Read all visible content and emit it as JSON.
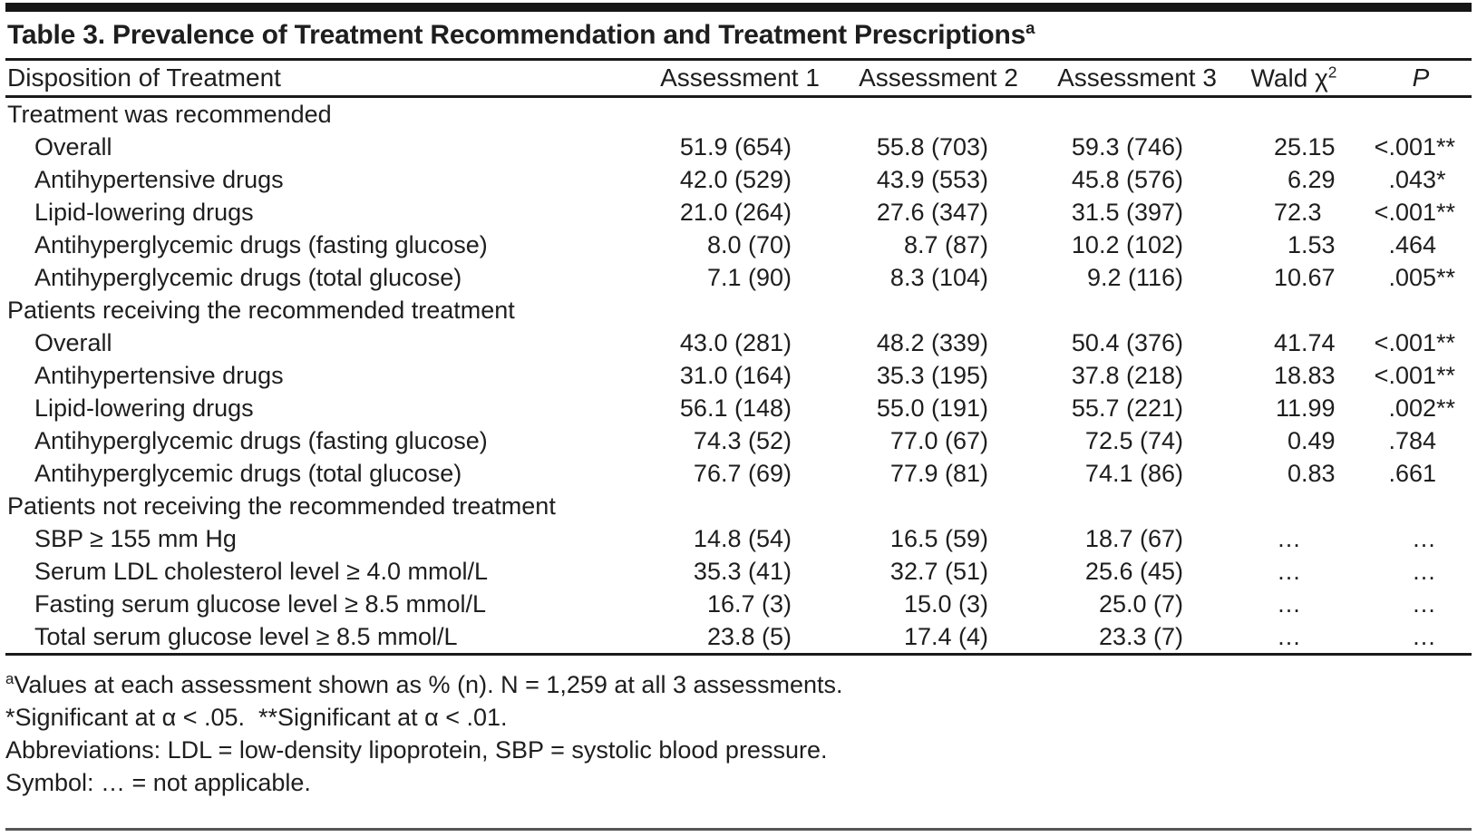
{
  "title": {
    "text": "Table 3. Prevalence of Treatment Recommendation and Treatment Prescriptions",
    "sup": "a"
  },
  "header": {
    "label": "Disposition of Treatment",
    "assessment1": "Assessment 1",
    "assessment2": "Assessment 2",
    "assessment3": "Assessment 3",
    "wald_base": "Wald χ",
    "wald_sup": "2",
    "p": "P"
  },
  "table": {
    "rows": [
      {
        "type": "section",
        "label": "Treatment was recommended"
      },
      {
        "type": "item",
        "label": "Overall",
        "a1": "51.9 (654)",
        "a2": "55.8 (703)",
        "a3": "59.3 (746)",
        "wald": "25.15",
        "p": "<.001**"
      },
      {
        "type": "item",
        "label": "Antihypertensive drugs",
        "a1": "42.0 (529)",
        "a2": "43.9 (553)",
        "a3": "45.8 (576)",
        "wald": "6.29",
        "p": ".043*"
      },
      {
        "type": "item",
        "label": "Lipid-lowering drugs",
        "a1": "21.0 (264)",
        "a2": "27.6 (347)",
        "a3": "31.5 (397)",
        "wald": "72.3",
        "p": "<.001**"
      },
      {
        "type": "item",
        "label": "Antihyperglycemic drugs (fasting glucose)",
        "a1": "8.0 (70)",
        "a2": "8.7 (87)",
        "a3": "10.2 (102)",
        "wald": "1.53",
        "p": ".464"
      },
      {
        "type": "item",
        "label": "Antihyperglycemic drugs (total glucose)",
        "a1": "7.1 (90)",
        "a2": "8.3 (104)",
        "a3": "9.2 (116)",
        "wald": "10.67",
        "p": ".005**"
      },
      {
        "type": "section",
        "label": "Patients receiving the recommended treatment"
      },
      {
        "type": "item",
        "label": "Overall",
        "a1": "43.0 (281)",
        "a2": "48.2 (339)",
        "a3": "50.4 (376)",
        "wald": "41.74",
        "p": "<.001**"
      },
      {
        "type": "item",
        "label": "Antihypertensive drugs",
        "a1": "31.0 (164)",
        "a2": "35.3 (195)",
        "a3": "37.8 (218)",
        "wald": "18.83",
        "p": "<.001**"
      },
      {
        "type": "item",
        "label": "Lipid-lowering drugs",
        "a1": "56.1 (148)",
        "a2": "55.0 (191)",
        "a3": "55.7 (221)",
        "wald": "11.99",
        "p": ".002**"
      },
      {
        "type": "item",
        "label": "Antihyperglycemic drugs (fasting glucose)",
        "a1": "74.3 (52)",
        "a2": "77.0 (67)",
        "a3": "72.5 (74)",
        "wald": "0.49",
        "p": ".784"
      },
      {
        "type": "item",
        "label": "Antihyperglycemic drugs (total glucose)",
        "a1": "76.7 (69)",
        "a2": "77.9 (81)",
        "a3": "74.1 (86)",
        "wald": "0.83",
        "p": ".661"
      },
      {
        "type": "section",
        "label": "Patients not receiving the recommended treatment"
      },
      {
        "type": "item",
        "label": "SBP ≥ 155 mm Hg",
        "a1": "14.8 (54)",
        "a2": "16.5 (59)",
        "a3": "18.7 (67)",
        "wald": "…",
        "p": "…"
      },
      {
        "type": "item",
        "label": "Serum LDL cholesterol level ≥ 4.0 mmol/L",
        "a1": "35.3 (41)",
        "a2": "32.7 (51)",
        "a3": "25.6 (45)",
        "wald": "…",
        "p": "…"
      },
      {
        "type": "item",
        "label": "Fasting serum glucose level ≥ 8.5 mmol/L",
        "a1": "16.7 (3)",
        "a2": "15.0 (3)",
        "a3": "25.0 (7)",
        "wald": "…",
        "p": "…"
      },
      {
        "type": "item",
        "label": "Total serum glucose level ≥ 8.5 mmol/L",
        "a1": "23.8 (5)",
        "a2": "17.4 (4)",
        "a3": "23.3 (7)",
        "wald": "…",
        "p": "…"
      }
    ]
  },
  "footnotes": [
    {
      "sup": "a",
      "text": "Values at each assessment shown as % (n). N = 1,259 at all 3 assessments."
    },
    {
      "sup": "",
      "text": "*Significant at α < .05.  **Significant at α < .01."
    },
    {
      "sup": "",
      "text": "Abbreviations: LDL = low-density lipoprotein, SBP = systolic blood pressure."
    },
    {
      "sup": "",
      "text": "Symbol: … = not applicable."
    }
  ],
  "colors": {
    "text": "#1e1e1e",
    "rule": "#1a1a1a",
    "bottom_rule": "#555555"
  }
}
